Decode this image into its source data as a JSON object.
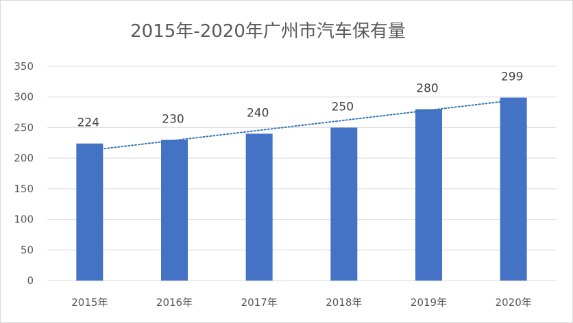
{
  "chart_data": {
    "type": "bar",
    "title": "2015年-2020年广州市汽车保有量",
    "categories": [
      "2015年",
      "2016年",
      "2017年",
      "2018年",
      "2019年",
      "2020年"
    ],
    "values": [
      224,
      230,
      240,
      250,
      280,
      299
    ],
    "data_labels": [
      "224",
      "230",
      "240",
      "250",
      "280",
      "299"
    ],
    "ylim": [
      0,
      350
    ],
    "yticks": [
      0,
      50,
      100,
      150,
      200,
      250,
      300,
      350
    ],
    "grid": true,
    "legend": "none",
    "trendline": {
      "type": "linear",
      "style": "dotted"
    },
    "colors": {
      "bar": "#4472c4",
      "trendline": "#2e75b6",
      "grid": "#d9d9d9"
    }
  }
}
